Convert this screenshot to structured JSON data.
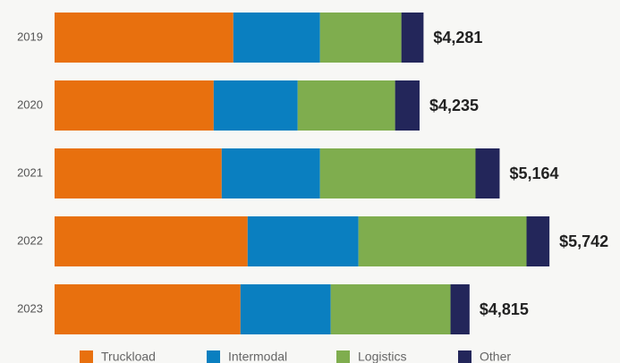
{
  "chart_data": {
    "type": "stacked_bar_horizontal",
    "categories": [
      "2019",
      "2020",
      "2021",
      "2022",
      "2023"
    ],
    "series": [
      {
        "name": "Truckload",
        "color": "#e8700e",
        "values": [
          2074,
          1846,
          1939,
          2240,
          2157
        ]
      },
      {
        "name": "Intermodal",
        "color": "#0a7fc0",
        "values": [
          1006,
          975,
          1141,
          1286,
          1047
        ]
      },
      {
        "name": "Logistics",
        "color": "#7fad4e",
        "values": [
          944,
          1130,
          1804,
          1950,
          1390
        ]
      },
      {
        "name": "Other",
        "color": "#23265a",
        "values": [
          257,
          284,
          280,
          266,
          221
        ]
      }
    ],
    "totals": [
      4281,
      4235,
      5164,
      5742,
      4815
    ],
    "total_labels": [
      "$4,281",
      "$4,235",
      "$5,164",
      "$5,742",
      "$4,815"
    ],
    "xlim": [
      0,
      6000
    ],
    "legend": "bottom"
  }
}
